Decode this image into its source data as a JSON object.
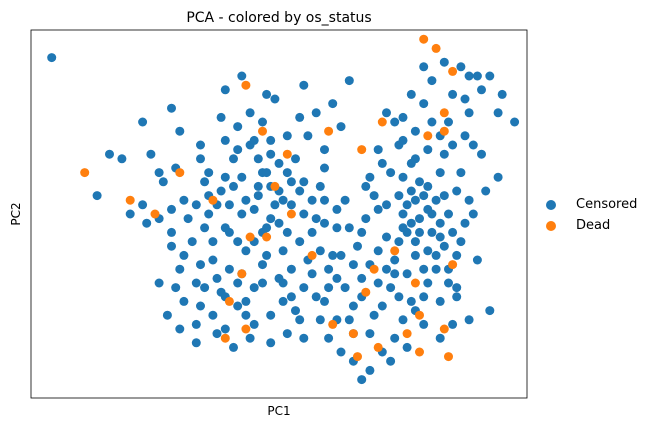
{
  "chart_data": {
    "type": "scatter",
    "title": "PCA - colored by os_status",
    "xlabel": "PC1",
    "ylabel": "PC2",
    "xlim": [
      -6,
      6
    ],
    "ylim": [
      -4,
      4
    ],
    "grid": false,
    "ticks": "hidden",
    "legend_position": "right",
    "series": [
      {
        "name": "Censored",
        "color": "#1f77b4",
        "points": [
          [
            -5.5,
            3.4
          ],
          [
            -3.1,
            1.3
          ],
          [
            -2.4,
            1.8
          ],
          [
            -1.0,
            1.4
          ],
          [
            -2.8,
            0.7
          ],
          [
            -3.6,
            0.0
          ],
          [
            -1.8,
            0.7
          ],
          [
            -2.2,
            -0.1
          ],
          [
            -1.5,
            0.2
          ],
          [
            -0.7,
            1.5
          ],
          [
            -0.5,
            0.4
          ],
          [
            -1.2,
            -0.4
          ],
          [
            -0.3,
            2.6
          ],
          [
            0.5,
            2.1
          ],
          [
            -1.6,
            -1.0
          ],
          [
            -1.4,
            -1.7
          ],
          [
            -0.8,
            -2.2
          ],
          [
            -1.2,
            -1.2
          ],
          [
            -0.6,
            -1.6
          ],
          [
            0.0,
            -1.4
          ],
          [
            0.6,
            0.0
          ],
          [
            0.3,
            -1.8
          ],
          [
            1.2,
            -1.2
          ],
          [
            1.6,
            0.3
          ],
          [
            1.5,
            -0.9
          ],
          [
            1.8,
            -2.0
          ],
          [
            2.3,
            -2.2
          ],
          [
            2.0,
            -1.4
          ],
          [
            2.6,
            0.2
          ],
          [
            3.0,
            0.0
          ],
          [
            3.3,
            -0.6
          ],
          [
            3.6,
            0.6
          ],
          [
            4.0,
            0.4
          ],
          [
            4.5,
            1.7
          ],
          [
            4.1,
            2.0
          ],
          [
            3.5,
            2.4
          ],
          [
            3.8,
            -1.2
          ],
          [
            4.3,
            -1.6
          ],
          [
            3.0,
            -2.3
          ],
          [
            2.9,
            1.5
          ],
          [
            2.4,
            1.4
          ],
          [
            2.1,
            0.6
          ],
          [
            4.6,
            3.0
          ],
          [
            5.3,
            2.2
          ],
          [
            5.3,
            0.8
          ],
          [
            4.8,
            -1.0
          ],
          [
            3.9,
            -0.2
          ],
          [
            3.1,
            -2.9
          ],
          [
            2.7,
            -3.2
          ],
          [
            2.0,
            -3.6
          ],
          [
            -4.4,
            0.4
          ],
          [
            -4.1,
            1.3
          ],
          [
            -3.2,
            -0.2
          ],
          [
            -2.6,
            0.1
          ],
          [
            -2.4,
            -1.2
          ],
          [
            -2.1,
            -0.6
          ],
          [
            -1.9,
            -2.0
          ],
          [
            -2.0,
            -1.5
          ],
          [
            -1.7,
            0.0
          ],
          [
            -1.0,
            -0.6
          ],
          [
            -0.8,
            0.3
          ],
          [
            -0.4,
            0.9
          ],
          [
            -0.2,
            -0.1
          ],
          [
            0.1,
            -0.8
          ],
          [
            0.4,
            -2.1
          ],
          [
            0.8,
            -0.4
          ],
          [
            1.1,
            0.3
          ],
          [
            1.4,
            -0.3
          ],
          [
            1.6,
            -1.6
          ],
          [
            1.9,
            -0.7
          ],
          [
            2.1,
            -0.1
          ],
          [
            2.4,
            0.1
          ],
          [
            2.6,
            -0.5
          ],
          [
            2.8,
            -1.0
          ],
          [
            3.1,
            -0.4
          ],
          [
            3.4,
            -0.1
          ],
          [
            3.6,
            -0.8
          ],
          [
            3.9,
            0.9
          ],
          [
            4.2,
            -0.4
          ],
          [
            4.0,
            1.3
          ],
          [
            3.3,
            1.2
          ],
          [
            3.0,
            0.8
          ],
          [
            2.8,
            2.0
          ],
          [
            3.5,
            3.2
          ],
          [
            4.2,
            2.6
          ],
          [
            4.8,
            3.0
          ],
          [
            4.6,
            2.2
          ],
          [
            3.7,
            2.0
          ],
          [
            3.2,
            2.6
          ],
          [
            2.6,
            2.2
          ],
          [
            -0.3,
            -0.3
          ],
          [
            -0.6,
            -0.6
          ],
          [
            -0.2,
            0.6
          ],
          [
            0.3,
            0.2
          ],
          [
            0.0,
            0.5
          ],
          [
            -0.8,
            -0.8
          ],
          [
            -1.4,
            0.5
          ],
          [
            -1.7,
            0.9
          ],
          [
            -1.1,
            1.2
          ],
          [
            -1.0,
            1.9
          ],
          [
            -1.4,
            2.1
          ],
          [
            -0.2,
            1.6
          ],
          [
            0.4,
            1.2
          ],
          [
            0.0,
            1.1
          ],
          [
            -0.5,
            1.2
          ],
          [
            0.2,
            1.7
          ],
          [
            -0.7,
            2.2
          ],
          [
            -0.1,
            2.5
          ],
          [
            0.9,
            2.2
          ],
          [
            1.1,
            1.4
          ],
          [
            -0.9,
            0.0
          ],
          [
            -1.3,
            -0.3
          ],
          [
            -1.6,
            -0.6
          ],
          [
            -1.1,
            0.6
          ],
          [
            -0.6,
            0.1
          ],
          [
            -0.3,
            -0.9
          ],
          [
            0.2,
            -0.4
          ],
          [
            0.5,
            -0.6
          ],
          [
            0.8,
            -1.3
          ],
          [
            1.2,
            -1.6
          ],
          [
            1.3,
            -0.9
          ],
          [
            0.9,
            -1.8
          ],
          [
            1.4,
            -2.3
          ],
          [
            1.8,
            -2.6
          ],
          [
            2.2,
            -2.6
          ],
          [
            2.5,
            -2.0
          ],
          [
            2.7,
            -1.6
          ],
          [
            2.4,
            -0.8
          ],
          [
            2.2,
            -1.1
          ],
          [
            1.8,
            -1.1
          ],
          [
            3.1,
            0.2
          ],
          [
            3.3,
            0.3
          ],
          [
            3.5,
            0.4
          ],
          [
            3.6,
            0.1
          ],
          [
            3.2,
            -0.2
          ],
          [
            3.0,
            -0.3
          ],
          [
            2.9,
            0.4
          ],
          [
            3.7,
            -0.4
          ],
          [
            3.9,
            -0.5
          ],
          [
            4.1,
            0.0
          ],
          [
            4.3,
            0.5
          ],
          [
            3.8,
            0.3
          ],
          [
            3.4,
            0.7
          ],
          [
            3.3,
            -0.9
          ],
          [
            3.5,
            -1.2
          ],
          [
            3.1,
            -1.3
          ],
          [
            2.9,
            -1.8
          ],
          [
            3.2,
            -1.9
          ],
          [
            3.6,
            -1.5
          ],
          [
            3.9,
            -1.9
          ],
          [
            4.1,
            -1.2
          ],
          [
            4.3,
            -0.9
          ],
          [
            4.5,
            -0.2
          ],
          [
            4.6,
            0.3
          ],
          [
            4.4,
            0.9
          ],
          [
            4.2,
            1.5
          ],
          [
            3.9,
            1.7
          ],
          [
            3.6,
            1.4
          ],
          [
            3.3,
            1.8
          ],
          [
            3.0,
            2.1
          ],
          [
            3.2,
            1.1
          ],
          [
            2.7,
            0.9
          ],
          [
            2.5,
            1.1
          ],
          [
            2.3,
            0.4
          ],
          [
            2.9,
            -0.6
          ],
          [
            2.6,
            -1.2
          ],
          [
            2.4,
            -1.5
          ],
          [
            2.0,
            -1.8
          ],
          [
            1.7,
            -2.3
          ],
          [
            1.4,
            -1.4
          ],
          [
            -2.3,
            -1.9
          ],
          [
            -2.0,
            -2.4
          ],
          [
            -1.6,
            -2.2
          ],
          [
            -1.3,
            -2.5
          ],
          [
            -1.0,
            -2.0
          ],
          [
            -0.6,
            -2.4
          ],
          [
            -0.2,
            -2.2
          ],
          [
            0.1,
            -1.9
          ],
          [
            -0.4,
            -1.5
          ],
          [
            -0.9,
            -1.3
          ],
          [
            -1.5,
            -1.4
          ],
          [
            -1.9,
            -1.1
          ],
          [
            -2.3,
            -0.9
          ],
          [
            -2.6,
            -0.4
          ],
          [
            -2.3,
            0.3
          ],
          [
            -2.0,
            0.2
          ],
          [
            -1.7,
            0.4
          ],
          [
            -1.3,
            0.8
          ],
          [
            -0.9,
            0.8
          ],
          [
            -0.5,
            0.6
          ],
          [
            0.0,
            -0.2
          ],
          [
            0.3,
            -1.2
          ],
          [
            0.7,
            -1.0
          ],
          [
            1.0,
            -0.8
          ],
          [
            1.1,
            -0.2
          ],
          [
            0.8,
            0.3
          ],
          [
            0.6,
            0.7
          ],
          [
            0.2,
            0.9
          ],
          [
            -0.2,
            1.3
          ],
          [
            -0.6,
            1.6
          ],
          [
            -1.3,
            1.6
          ],
          [
            -1.9,
            1.5
          ],
          [
            -2.5,
            1.0
          ],
          [
            -2.9,
            0.9
          ],
          [
            -3.3,
            0.2
          ],
          [
            -2.9,
            -0.1
          ],
          [
            -2.6,
            -0.7
          ],
          [
            -2.9,
            -1.5
          ],
          [
            -2.5,
            -1.6
          ],
          [
            -2.7,
            -2.2
          ],
          [
            4.7,
            1.5
          ],
          [
            4.9,
            2.7
          ],
          [
            5.1,
            3.0
          ],
          [
            5.4,
            2.6
          ],
          [
            5.7,
            2.0
          ],
          [
            4.5,
            2.5
          ],
          [
            4.0,
            3.3
          ],
          [
            3.7,
            2.9
          ],
          [
            4.4,
            3.2
          ],
          [
            4.9,
            1.3
          ],
          [
            5.0,
            0.5
          ],
          [
            4.7,
            0.0
          ],
          [
            4.4,
            -0.6
          ],
          [
            4.3,
            -1.8
          ],
          [
            4.6,
            -2.3
          ],
          [
            5.1,
            -2.1
          ],
          [
            4.2,
            -2.4
          ],
          [
            3.9,
            -2.7
          ],
          [
            3.5,
            -2.4
          ],
          [
            3.3,
            -2.1
          ],
          [
            2.8,
            -2.7
          ],
          [
            2.5,
            -3.0
          ],
          [
            2.2,
            -3.4
          ],
          [
            1.8,
            -3.2
          ],
          [
            1.5,
            -3.0
          ],
          [
            1.2,
            -2.7
          ],
          [
            1.0,
            -2.3
          ],
          [
            0.6,
            -2.7
          ],
          [
            0.2,
            -2.6
          ],
          [
            -0.2,
            -2.8
          ],
          [
            -0.7,
            -2.7
          ],
          [
            -1.1,
            -2.9
          ],
          [
            -1.5,
            -2.6
          ],
          [
            -2.0,
            -2.8
          ],
          [
            -2.4,
            -2.5
          ],
          [
            -1.8,
            -1.6
          ],
          [
            -1.0,
            -1.5
          ],
          [
            -0.4,
            -1.1
          ],
          [
            0.1,
            -1.5
          ],
          [
            0.6,
            -1.6
          ],
          [
            1.5,
            1.9
          ],
          [
            1.3,
            2.4
          ],
          [
            0.6,
            2.8
          ],
          [
            1.7,
            2.9
          ],
          [
            -0.9,
            3.0
          ],
          [
            -1.3,
            2.7
          ],
          [
            -2.6,
            2.3
          ],
          [
            -3.3,
            2.0
          ],
          [
            -3.8,
            1.2
          ],
          [
            -1.9,
            1.2
          ],
          [
            -0.4,
            2.0
          ],
          [
            0.7,
            1.7
          ],
          [
            1.1,
            1.0
          ],
          [
            1.0,
            0.6
          ],
          [
            0.5,
            0.5
          ],
          [
            0.9,
            -0.1
          ],
          [
            1.4,
            0.1
          ],
          [
            1.7,
            -0.3
          ],
          [
            2.0,
            -0.4
          ],
          [
            2.2,
            0.8
          ],
          [
            -0.1,
            0.2
          ],
          [
            -0.4,
            -0.4
          ],
          [
            0.1,
            0.3
          ],
          [
            -0.3,
            0.9
          ],
          [
            0.3,
            0.7
          ],
          [
            -1.2,
            0.2
          ],
          [
            -1.8,
            -0.3
          ],
          [
            3.4,
            -0.4
          ],
          [
            3.7,
            0.0
          ],
          [
            3.8,
            -0.9
          ],
          [
            4.0,
            -0.7
          ],
          [
            3.2,
            0.5
          ],
          [
            3.0,
            1.6
          ],
          [
            2.8,
            -1.3
          ],
          [
            3.5,
            -1.8
          ],
          [
            4.1,
            -1.5
          ],
          [
            -0.8,
            -1.9
          ],
          [
            -1.3,
            -1.8
          ],
          [
            0.5,
            -2.3
          ],
          [
            1.1,
            -1.9
          ]
        ]
      },
      {
        "name": "Dead",
        "color": "#ff7f0e",
        "points": [
          [
            -4.7,
            0.9
          ],
          [
            -3.6,
            0.3
          ],
          [
            -2.4,
            0.9
          ],
          [
            -3.0,
            0.0
          ],
          [
            -1.6,
            0.3
          ],
          [
            -0.8,
            2.8
          ],
          [
            -0.7,
            -0.5
          ],
          [
            -0.9,
            -1.3
          ],
          [
            -0.8,
            -2.5
          ],
          [
            -1.2,
            -1.9
          ],
          [
            -0.3,
            -0.5
          ],
          [
            -0.1,
            0.6
          ],
          [
            -0.4,
            1.8
          ],
          [
            0.2,
            1.3
          ],
          [
            -1.3,
            -2.7
          ],
          [
            0.8,
            -0.9
          ],
          [
            2.1,
            -1.7
          ],
          [
            1.8,
            -2.6
          ],
          [
            1.9,
            -3.1
          ],
          [
            2.4,
            -2.9
          ],
          [
            2.3,
            -1.2
          ],
          [
            2.0,
            1.4
          ],
          [
            2.5,
            2.0
          ],
          [
            3.6,
            1.7
          ],
          [
            4.0,
            2.2
          ],
          [
            3.5,
            3.8
          ],
          [
            3.8,
            3.6
          ],
          [
            4.2,
            3.1
          ],
          [
            4.0,
            1.8
          ],
          [
            1.3,
            -2.4
          ],
          [
            3.1,
            -2.6
          ],
          [
            3.4,
            -3.0
          ],
          [
            3.3,
            -1.5
          ],
          [
            4.2,
            -1.1
          ],
          [
            2.8,
            -0.8
          ],
          [
            3.4,
            -2.2
          ],
          [
            4.1,
            -3.1
          ],
          [
            4.0,
            -2.5
          ],
          [
            1.2,
            1.8
          ],
          [
            0.3,
            0.0
          ]
        ]
      }
    ]
  }
}
